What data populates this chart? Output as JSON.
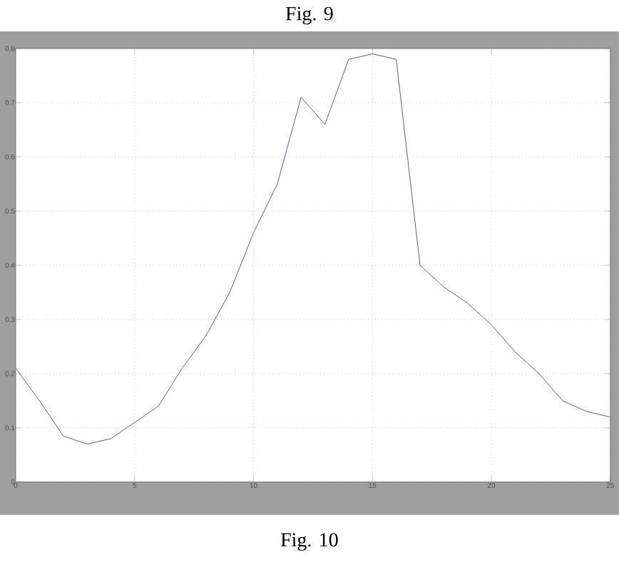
{
  "chart_data": {
    "type": "line",
    "x": [
      0,
      1,
      2,
      3,
      4,
      5,
      6,
      7,
      8,
      9,
      10,
      11,
      12,
      13,
      14,
      15,
      16,
      17,
      18,
      19,
      20,
      21,
      22,
      23,
      24,
      25
    ],
    "values": [
      0.21,
      0.15,
      0.085,
      0.07,
      0.08,
      0.11,
      0.14,
      0.21,
      0.27,
      0.35,
      0.46,
      0.55,
      0.71,
      0.66,
      0.78,
      0.79,
      0.78,
      0.4,
      0.36,
      0.33,
      0.29,
      0.24,
      0.2,
      0.15,
      0.13,
      0.12
    ],
    "color": "#5a5a9e",
    "xlim": [
      0,
      25
    ],
    "xticks": [
      0,
      5,
      10,
      15,
      20,
      25
    ],
    "ylim": [
      0,
      0.8
    ],
    "yticks": [
      0,
      0.1,
      0.2,
      0.3,
      0.4,
      0.5,
      0.6,
      0.7,
      0.8
    ],
    "grid": true,
    "marker": "none",
    "line_style": "solid",
    "annotations": [
      "Fig. 9",
      "Fig. 10"
    ]
  }
}
